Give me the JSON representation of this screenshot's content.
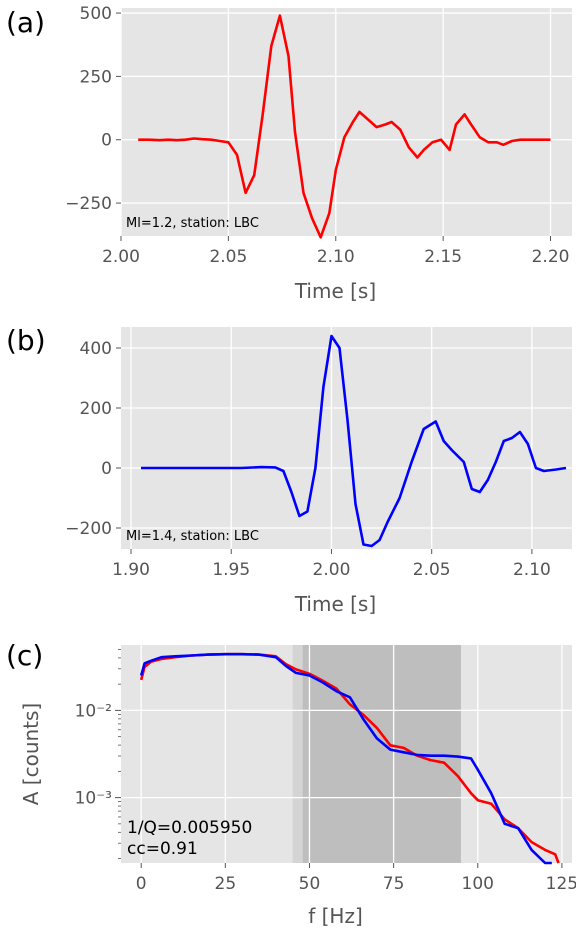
{
  "chart_data": [
    {
      "panel": "(a)",
      "type": "line",
      "xlabel": "Time [s]",
      "ylabel": "",
      "xlim": [
        2.0,
        2.21
      ],
      "ylim": [
        -380,
        520
      ],
      "xticks": [
        2.0,
        2.05,
        2.1,
        2.15,
        2.2
      ],
      "xtick_labels": [
        "2.00",
        "2.05",
        "2.10",
        "2.15",
        "2.20"
      ],
      "yticks": [
        500,
        250,
        0,
        -250
      ],
      "ytick_labels": [
        "500",
        "250",
        "0",
        "−250"
      ],
      "annotation": "Ml=1.2, station: LBC",
      "grid": true,
      "series": [
        {
          "color": "#ff0000",
          "x": [
            2.008,
            2.013,
            2.018,
            2.022,
            2.026,
            2.03,
            2.034,
            2.038,
            2.042,
            2.046,
            2.05,
            2.054,
            2.058,
            2.062,
            2.066,
            2.07,
            2.074,
            2.078,
            2.081,
            2.085,
            2.089,
            2.093,
            2.097,
            2.1,
            2.104,
            2.108,
            2.111,
            2.115,
            2.119,
            2.123,
            2.126,
            2.13,
            2.134,
            2.138,
            2.141,
            2.145,
            2.149,
            2.153,
            2.156,
            2.16,
            2.163,
            2.167,
            2.171,
            2.175,
            2.178,
            2.182,
            2.186,
            2.19,
            2.194,
            2.198,
            2.2
          ],
          "y": [
            0,
            0,
            -2,
            0,
            -2,
            0,
            5,
            2,
            0,
            -5,
            -10,
            -60,
            -210,
            -140,
            100,
            370,
            490,
            330,
            30,
            -210,
            -310,
            -385,
            -290,
            -120,
            10,
            70,
            110,
            80,
            50,
            60,
            70,
            40,
            -30,
            -70,
            -40,
            -10,
            0,
            -40,
            60,
            100,
            60,
            10,
            -10,
            -10,
            -20,
            -5,
            0,
            0,
            0,
            0,
            0
          ]
        }
      ]
    },
    {
      "panel": "(b)",
      "type": "line",
      "xlabel": "Time [s]",
      "ylabel": "",
      "xlim": [
        1.895,
        2.12
      ],
      "ylim": [
        -270,
        470
      ],
      "xticks": [
        1.9,
        1.95,
        2.0,
        2.05,
        2.1
      ],
      "xtick_labels": [
        "1.90",
        "1.95",
        "2.00",
        "2.05",
        "2.10"
      ],
      "yticks": [
        400,
        200,
        0,
        -200
      ],
      "ytick_labels": [
        "400",
        "200",
        "0",
        "−200"
      ],
      "annotation": "Ml=1.4, station: LBC",
      "grid": true,
      "series": [
        {
          "color": "#0000ff",
          "x": [
            1.905,
            1.915,
            1.925,
            1.935,
            1.945,
            1.955,
            1.965,
            1.972,
            1.976,
            1.98,
            1.984,
            1.988,
            1.992,
            1.996,
            2.0,
            2.004,
            2.008,
            2.012,
            2.016,
            2.02,
            2.024,
            2.028,
            2.034,
            2.04,
            2.046,
            2.052,
            2.056,
            2.06,
            2.066,
            2.07,
            2.074,
            2.078,
            2.082,
            2.086,
            2.09,
            2.094,
            2.098,
            2.102,
            2.106,
            2.112,
            2.117
          ],
          "y": [
            0,
            0,
            0,
            0,
            0,
            0,
            3,
            2,
            -10,
            -80,
            -160,
            -145,
            0,
            270,
            440,
            400,
            160,
            -120,
            -255,
            -260,
            -240,
            -180,
            -100,
            20,
            130,
            155,
            90,
            60,
            20,
            -70,
            -80,
            -40,
            20,
            90,
            100,
            120,
            80,
            0,
            -10,
            -5,
            0
          ]
        }
      ]
    },
    {
      "panel": "(c)",
      "type": "line",
      "xlabel": "f [Hz]",
      "ylabel": "A [counts]",
      "xlim": [
        -6,
        128
      ],
      "ylim_log10": [
        -3.75,
        -1.25
      ],
      "yscale": "log",
      "xticks": [
        0,
        25,
        50,
        75,
        100,
        125
      ],
      "xtick_labels": [
        "0",
        "25",
        "50",
        "75",
        "100",
        "125"
      ],
      "yticks_log10": [
        -2,
        -3
      ],
      "ytick_labels": [
        "10⁻²",
        "10⁻³"
      ],
      "shaded_bands": [
        {
          "from": 45,
          "to": 95,
          "shade": "light"
        },
        {
          "from": 48,
          "to": 95,
          "shade": "medium"
        }
      ],
      "annotation_lines": [
        "1/Q=0.005950",
        "cc=0.91"
      ],
      "grid": true,
      "series": [
        {
          "color": "#ff0000",
          "x": [
            0,
            1,
            3,
            6,
            10,
            15,
            20,
            25,
            30,
            35,
            40,
            43,
            46,
            50,
            54,
            58,
            62,
            66,
            70,
            74,
            78,
            82,
            86,
            90,
            94,
            98,
            100,
            104,
            108,
            112,
            116,
            120,
            123,
            124
          ],
          "y_log10": [
            -1.65,
            -1.5,
            -1.44,
            -1.41,
            -1.39,
            -1.37,
            -1.36,
            -1.355,
            -1.355,
            -1.36,
            -1.38,
            -1.47,
            -1.53,
            -1.58,
            -1.66,
            -1.75,
            -1.93,
            -2.05,
            -2.2,
            -2.4,
            -2.43,
            -2.52,
            -2.57,
            -2.6,
            -2.75,
            -2.95,
            -3.03,
            -3.07,
            -3.25,
            -3.35,
            -3.51,
            -3.6,
            -3.65,
            -3.8
          ]
        },
        {
          "color": "#0000ff",
          "x": [
            0,
            1,
            3,
            6,
            10,
            15,
            20,
            25,
            30,
            35,
            40,
            43,
            46,
            50,
            54,
            58,
            62,
            66,
            70,
            74,
            78,
            82,
            86,
            90,
            94,
            98,
            100,
            104,
            108,
            112,
            116,
            120,
            122
          ],
          "y_log10": [
            -1.6,
            -1.46,
            -1.43,
            -1.39,
            -1.38,
            -1.37,
            -1.36,
            -1.355,
            -1.355,
            -1.36,
            -1.39,
            -1.49,
            -1.57,
            -1.6,
            -1.68,
            -1.78,
            -1.85,
            -2.1,
            -2.32,
            -2.45,
            -2.48,
            -2.51,
            -2.52,
            -2.52,
            -2.53,
            -2.55,
            -2.68,
            -2.95,
            -3.3,
            -3.35,
            -3.6,
            -3.8,
            -3.8
          ]
        }
      ]
    }
  ]
}
